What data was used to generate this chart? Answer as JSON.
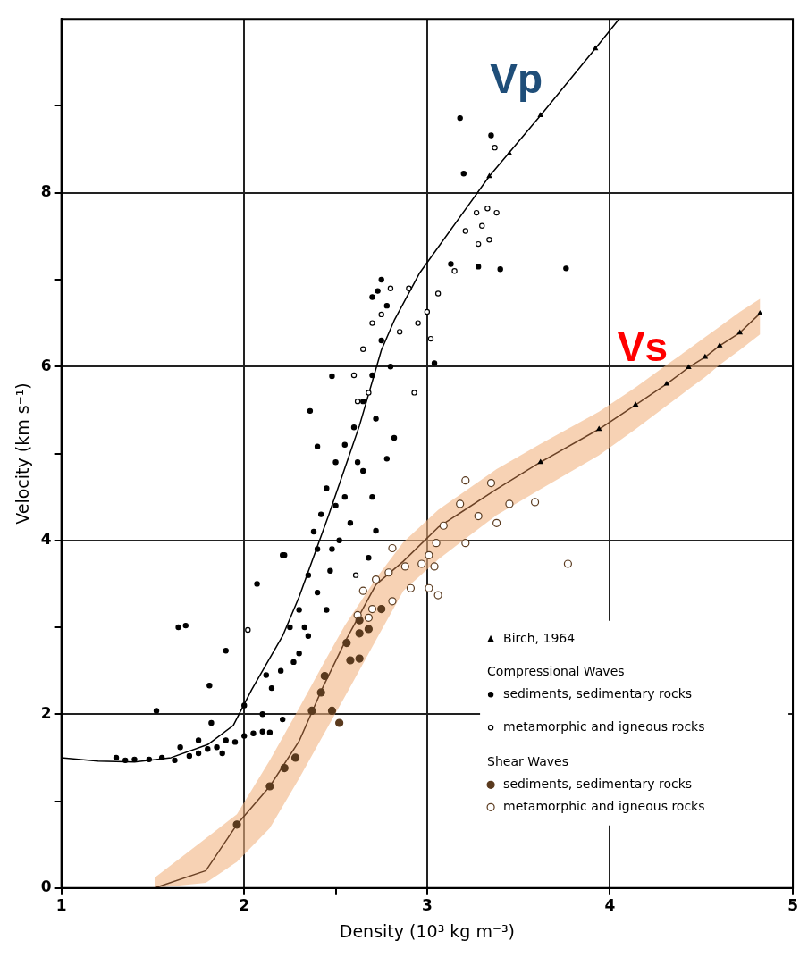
{
  "chart_data": {
    "type": "scatter",
    "xlabel": "Density (10³ kg m⁻³)",
    "ylabel": "Velocity (km s⁻¹)",
    "xlim": [
      1,
      5
    ],
    "ylim": [
      0,
      10
    ],
    "xticks": [
      1,
      2,
      {
        "value": 2.5,
        "label": null
      },
      3,
      4,
      5
    ],
    "yticks": [
      0,
      {
        "value": 1,
        "label": null
      },
      2,
      {
        "value": 3,
        "label": null
      },
      4,
      {
        "value": 5,
        "label": null
      },
      6,
      {
        "value": 7,
        "label": null
      },
      8,
      {
        "value": 9,
        "label": null
      }
    ],
    "grid": true,
    "legend": "bottom right",
    "annotations": [
      "Compressional Waves",
      "Shear Waves"
    ],
    "series": [
      {
        "type": "line",
        "name": "Vp",
        "color": "#000000",
        "marker": "none",
        "x": [
          1,
          1.2,
          1.4,
          1.6,
          1.8,
          1.94,
          2.04,
          2.21,
          2.3,
          2.46,
          2.63,
          2.75,
          2.82,
          2.96,
          3.34,
          3.62,
          3.92,
          4.05
        ],
        "values": [
          1.5,
          1.46,
          1.45,
          1.5,
          1.65,
          1.87,
          2.28,
          2.9,
          3.35,
          4.28,
          5.32,
          6.19,
          6.53,
          7.08,
          8.19,
          8.89,
          9.66,
          10
        ]
      },
      {
        "type": "line",
        "name": "Vs",
        "color": "#6b4226",
        "marker": "none",
        "x": [
          1.51,
          1.79,
          1.96,
          2.14,
          2.3,
          2.43,
          2.55,
          2.72,
          2.87,
          3.06,
          3.38,
          3.62,
          3.94,
          4.14,
          4.31,
          4.43,
          4.52,
          4.6,
          4.71,
          4.82
        ],
        "values": [
          0,
          0.2,
          0.73,
          1.17,
          1.69,
          2.31,
          2.83,
          3.49,
          3.76,
          4.15,
          4.59,
          4.9,
          5.28,
          5.56,
          5.8,
          5.99,
          6.11,
          6.24,
          6.39,
          6.61
        ],
        "lower": [
          0,
          0.06,
          0.3,
          0.69,
          1.26,
          1.75,
          2.2,
          2.85,
          3.42,
          3.78,
          4.29,
          4.59,
          4.98,
          5.28,
          5.55,
          5.74,
          5.88,
          6.02,
          6.19,
          6.37
        ],
        "upper": [
          0.12,
          0.57,
          0.85,
          1.47,
          2.07,
          2.57,
          3.02,
          3.56,
          3.98,
          4.35,
          4.82,
          5.11,
          5.48,
          5.76,
          6.02,
          6.2,
          6.34,
          6.46,
          6.63,
          6.78
        ]
      },
      {
        "type": "scatter",
        "name": "Birch, 1964",
        "color": "#000000",
        "marker": "triangle",
        "x": [
          3.34,
          3.45,
          3.62,
          3.92,
          3.62,
          3.94,
          4.14,
          4.31,
          4.43,
          4.52,
          4.6,
          4.71,
          4.82
        ],
        "values": [
          8.19,
          8.45,
          8.89,
          9.66,
          4.9,
          5.28,
          5.56,
          5.8,
          5.99,
          6.11,
          6.24,
          6.39,
          6.61
        ]
      },
      {
        "type": "scatter",
        "name": "sediments, sedimentary rocks",
        "color": "#000000",
        "marker": "circle",
        "x": [
          1.3,
          1.35,
          1.4,
          1.48,
          1.55,
          1.62,
          1.7,
          1.75,
          1.8,
          1.85,
          1.9,
          1.95,
          2.0,
          2.05,
          2.1,
          1.88,
          1.75,
          1.65,
          1.82,
          1.64,
          1.68,
          1.9,
          1.81,
          1.52,
          2.07,
          2.22,
          2.14,
          2.21,
          2.47,
          2.68,
          2.3,
          2.35,
          2.4,
          2.42,
          2.45,
          2.5,
          2.5,
          2.55,
          2.6,
          2.62,
          2.65,
          2.7,
          2.72,
          2.75,
          2.78,
          2.8,
          2.7,
          2.75,
          2.55,
          2.4,
          2.25,
          2.2,
          2.15,
          2.1,
          2.3,
          2.35,
          2.45,
          2.38,
          2.48,
          2.65,
          2.7,
          2.21,
          2.4,
          2.36,
          2.48,
          2.82,
          2.78,
          2.72,
          2.73,
          3.04,
          3.13,
          3.4,
          3.18,
          3.35,
          3.2,
          3.28,
          3.76,
          2.0,
          2.12,
          2.27,
          2.33,
          2.52,
          2.58
        ],
        "values": [
          1.5,
          1.47,
          1.48,
          1.48,
          1.5,
          1.47,
          1.52,
          1.55,
          1.6,
          1.62,
          1.7,
          1.68,
          1.75,
          1.78,
          1.8,
          1.55,
          1.7,
          1.62,
          1.9,
          3.0,
          3.02,
          2.73,
          2.33,
          2.04,
          3.5,
          3.83,
          1.79,
          1.94,
          3.65,
          3.8,
          3.2,
          3.6,
          3.9,
          4.3,
          4.6,
          4.4,
          4.9,
          5.1,
          5.3,
          4.9,
          5.6,
          5.9,
          5.4,
          6.3,
          6.7,
          6.0,
          6.8,
          7.0,
          4.5,
          3.4,
          3.0,
          2.5,
          2.3,
          2.0,
          2.7,
          2.9,
          3.2,
          4.1,
          3.9,
          4.8,
          4.5,
          3.83,
          5.08,
          5.49,
          5.89,
          5.18,
          4.94,
          4.11,
          6.87,
          6.04,
          7.18,
          7.12,
          8.86,
          8.66,
          8.22,
          7.15,
          7.13,
          2.1,
          2.45,
          2.6,
          3.0,
          4.0,
          4.2
        ]
      },
      {
        "type": "scatter",
        "name": "metamorphic and igneous rocks",
        "color": "#000000",
        "marker": "circle",
        "x": [
          3.37,
          3.33,
          3.27,
          3.3,
          3.38,
          3.34,
          3.28,
          3.21,
          3.15,
          3.06,
          3.0,
          3.02,
          2.93,
          2.6,
          2.65,
          2.7,
          2.75,
          2.68,
          2.62,
          2.8,
          2.85,
          2.9,
          2.95,
          2.61,
          2.02
        ],
        "values": [
          8.52,
          7.82,
          7.77,
          7.62,
          7.77,
          7.46,
          7.41,
          7.56,
          7.1,
          6.84,
          6.63,
          6.32,
          5.7,
          5.9,
          6.2,
          6.5,
          6.6,
          5.7,
          5.6,
          6.9,
          6.4,
          6.9,
          6.5,
          3.6,
          2.97
        ]
      },
      {
        "type": "scatter",
        "name": "sediments, sedimentary rocks",
        "color": "#5a3a1e",
        "marker": "circle",
        "x": [
          1.96,
          2.14,
          2.22,
          2.28,
          2.37,
          2.42,
          2.48,
          2.52,
          2.44,
          2.56,
          2.58,
          2.63,
          2.63,
          2.68,
          2.75,
          2.63
        ],
        "values": [
          0.73,
          1.17,
          1.38,
          1.5,
          2.04,
          2.25,
          2.04,
          1.9,
          2.44,
          2.82,
          2.62,
          2.64,
          2.93,
          2.98,
          3.21,
          3.08
        ]
      },
      {
        "type": "scatter",
        "name": "metamorphic and igneous rocks",
        "color": "#5a3a1e",
        "marker": "circle",
        "x": [
          3.21,
          3.35,
          3.45,
          3.18,
          3.28,
          3.38,
          3.59,
          3.09,
          3.21,
          3.05,
          3.01,
          2.97,
          3.04,
          2.88,
          2.79,
          2.91,
          3.01,
          3.06,
          2.81,
          2.7,
          2.65,
          2.62,
          2.68,
          3.77,
          2.81,
          2.72
        ],
        "values": [
          4.69,
          4.66,
          4.42,
          4.42,
          4.28,
          4.2,
          4.44,
          4.17,
          3.97,
          3.97,
          3.83,
          3.73,
          3.7,
          3.7,
          3.63,
          3.45,
          3.45,
          3.37,
          3.3,
          3.21,
          3.42,
          3.14,
          3.11,
          3.73,
          3.91,
          3.55
        ]
      }
    ]
  }
}
